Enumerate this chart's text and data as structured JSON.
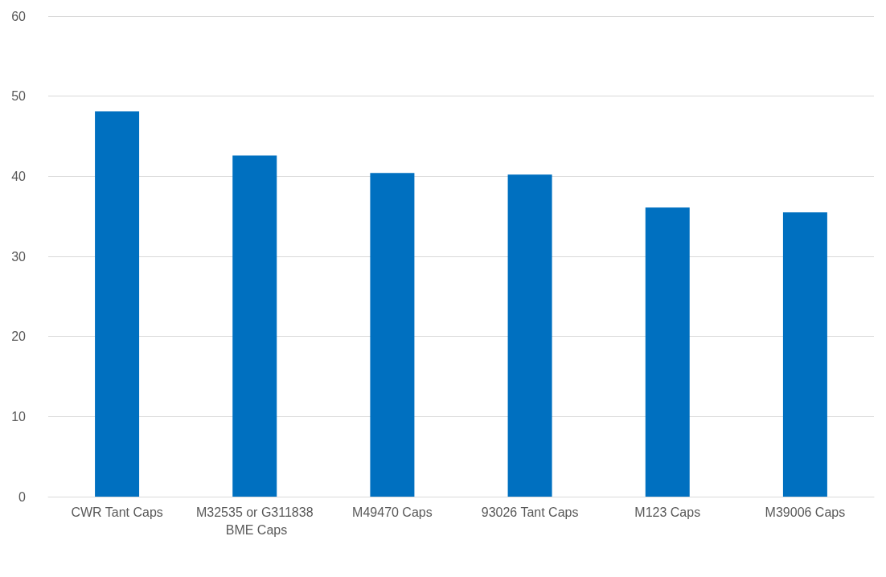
{
  "chart_data": {
    "type": "bar",
    "categories": [
      "CWR Tant Caps",
      "M32535 or G311838 BME Caps",
      "M49470 Caps",
      "93026 Tant Caps",
      "M123 Caps",
      "M39006 Caps"
    ],
    "values": [
      48.1,
      42.6,
      40.4,
      40.2,
      36.1,
      35.5
    ],
    "color": "#0070c0",
    "ylim": [
      0,
      60
    ],
    "yticks": [
      0,
      10,
      20,
      30,
      40,
      50,
      60
    ],
    "grid": "y"
  }
}
